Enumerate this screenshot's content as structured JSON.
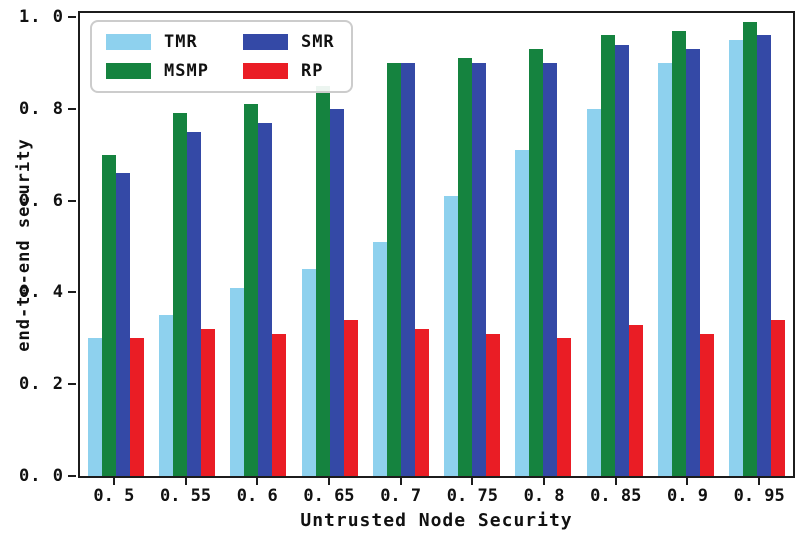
{
  "figure": {
    "background": "#ffffff",
    "axis_color": "#1c1c1c",
    "legend_border_color": "#cccccc"
  },
  "chart_data": {
    "type": "bar",
    "title": "",
    "xlabel": "Untrusted Node Security",
    "ylabel": "end-to-end security",
    "categories": [
      0.5,
      0.55,
      0.6,
      0.65,
      0.7,
      0.75,
      0.8,
      0.85,
      0.9,
      0.95
    ],
    "x_tick_labels": [
      "0. 5",
      "0. 55",
      "0. 6",
      "0. 65",
      "0. 7",
      "0. 75",
      "0. 8",
      "0. 85",
      "0. 9",
      "0. 95"
    ],
    "y_ticks": [
      0.0,
      0.2,
      0.4,
      0.6,
      0.8,
      1.0
    ],
    "y_tick_labels": [
      "0. 0",
      "0. 2",
      "0. 4",
      "0. 6",
      "0. 8",
      "1. 0"
    ],
    "ylim": [
      0.0,
      1.02
    ],
    "grid": false,
    "legend_position": "upper-left",
    "legend_order_note": "two columns, column-major: TMR, MSMP | SMR, RP",
    "series": [
      {
        "name": "TMR",
        "color": "#8ed1ee",
        "values": [
          0.3,
          0.35,
          0.41,
          0.45,
          0.51,
          0.61,
          0.71,
          0.8,
          0.9,
          0.95
        ]
      },
      {
        "name": "MSMP",
        "color": "#15833f",
        "values": [
          0.7,
          0.79,
          0.81,
          0.85,
          0.9,
          0.91,
          0.93,
          0.96,
          0.97,
          0.99
        ]
      },
      {
        "name": "SMR",
        "color": "#3449a6",
        "values": [
          0.66,
          0.75,
          0.77,
          0.8,
          0.9,
          0.9,
          0.9,
          0.94,
          0.93,
          0.96
        ]
      },
      {
        "name": "RP",
        "color": "#ea1d25",
        "values": [
          0.3,
          0.32,
          0.31,
          0.34,
          0.32,
          0.31,
          0.3,
          0.33,
          0.31,
          0.34
        ]
      }
    ]
  }
}
